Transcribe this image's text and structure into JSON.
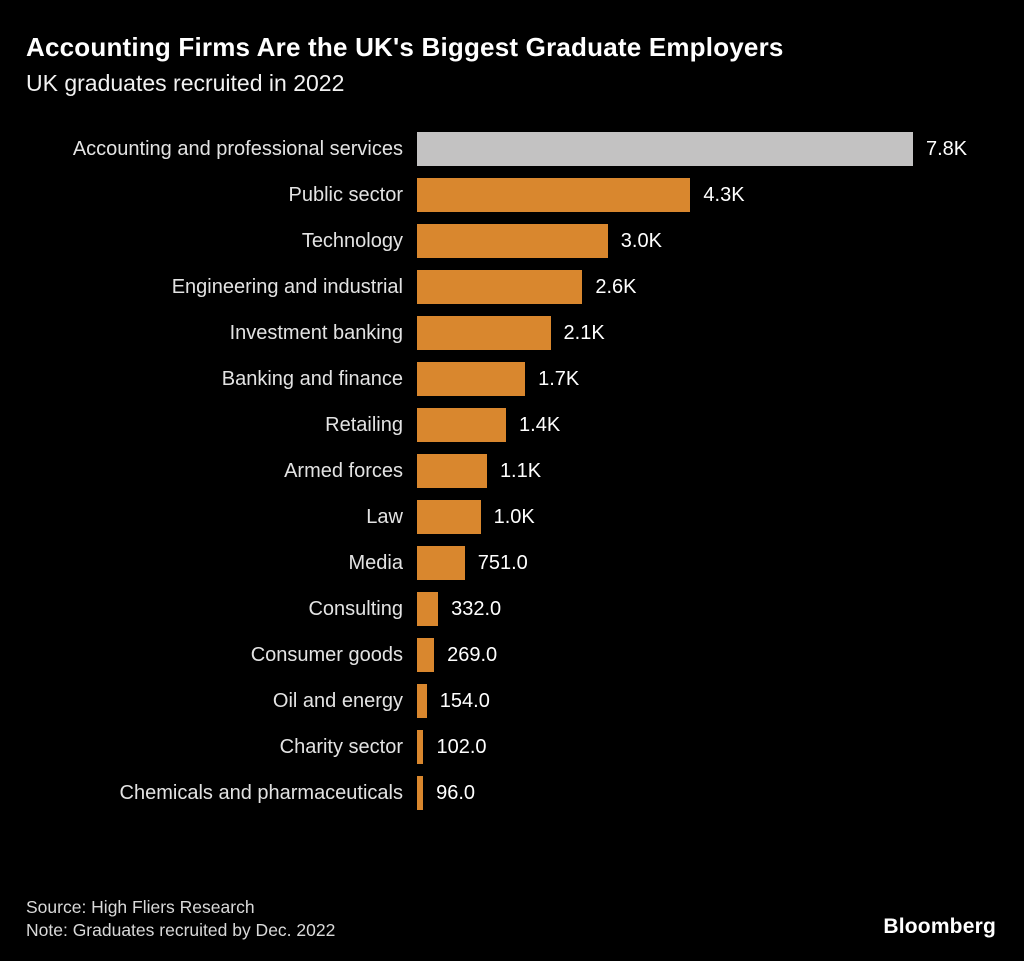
{
  "header": {
    "title": "Accounting Firms Are the UK's Biggest Graduate Employers",
    "subtitle": "UK graduates recruited in 2022"
  },
  "footer": {
    "source": "Source: High Fliers Research",
    "note": "Note: Graduates recruited by Dec. 2022",
    "brand": "Bloomberg"
  },
  "colors": {
    "background": "#000000",
    "bar_default": "#d9872e",
    "bar_highlight": "#c3c2c2",
    "label_text": "#e3e3e3",
    "value_text": "#ffffff"
  },
  "chart_data": {
    "type": "bar",
    "orientation": "horizontal",
    "title": "Accounting Firms Are the UK's Biggest Graduate Employers",
    "subtitle": "UK graduates recruited in 2022",
    "xlabel": "",
    "ylabel": "",
    "xlim": [
      0,
      7800
    ],
    "grid": false,
    "legend": false,
    "highlight_index": 0,
    "categories": [
      "Accounting and professional services",
      "Public sector",
      "Technology",
      "Engineering and industrial",
      "Investment banking",
      "Banking and finance",
      "Retailing",
      "Armed forces",
      "Law",
      "Media",
      "Consulting",
      "Consumer goods",
      "Oil and energy",
      "Charity sector",
      "Chemicals and pharmaceuticals"
    ],
    "values": [
      7800,
      4300,
      3000,
      2600,
      2100,
      1700,
      1400,
      1100,
      1000,
      751,
      332,
      269,
      154,
      102,
      96
    ],
    "value_labels": [
      "7.8K",
      "4.3K",
      "3.0K",
      "2.6K",
      "2.1K",
      "1.7K",
      "1.4K",
      "1.1K",
      "1.0K",
      "751.0",
      "332.0",
      "269.0",
      "154.0",
      "102.0",
      "96.0"
    ]
  }
}
